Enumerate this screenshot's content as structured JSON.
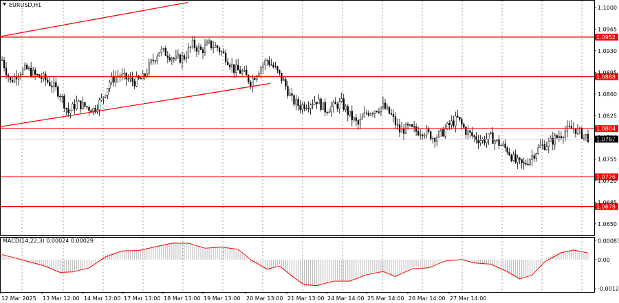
{
  "chart_data": [
    {
      "type": "candlestick",
      "title": "EURUSD,H1",
      "ylim": [
        1.0632,
        1.1012
      ],
      "price_ticks": [
        "1.1000",
        "1.0965",
        "1.0930",
        "1.0895",
        "1.0860",
        "1.0825",
        "1.0790",
        "1.0755",
        "1.0720",
        "1.0685",
        "1.0650"
      ],
      "x_labels": [
        "12 Mar 2025",
        "13 Mar 12:00",
        "14 Mar 12:00",
        "17 Mar 13:00",
        "18 Mar 13:00",
        "19 Mar 13:00",
        "20 Mar 13:00",
        "21 Mar 13:00",
        "24 Mar 14:00",
        "25 Mar 14:00",
        "26 Mar 14:00",
        "27 Mar 14:00"
      ],
      "current_price": {
        "value": "1.0787",
        "bg": "#000000",
        "fg": "#ffffff"
      },
      "horizontal_levels": [
        {
          "value": 1.0952,
          "label": "1.0952"
        },
        {
          "value": 1.0888,
          "label": "1.0888"
        },
        {
          "value": 1.0804,
          "label": "1.0804"
        },
        {
          "value": 1.0726,
          "label": "1.0726"
        },
        {
          "value": 1.0678,
          "label": "1.0678"
        }
      ],
      "trend_channel": {
        "upper": {
          "from": [
            "12 Mar 2025",
            1.0953
          ],
          "to": [
            "18 Mar 13:00",
            1.1008
          ]
        },
        "lower": {
          "from": [
            "12 Mar 2025",
            1.0807
          ],
          "to": [
            "20 Mar 13:00",
            1.0877
          ]
        }
      },
      "price_path": [
        [
          0,
          1.0915
        ],
        [
          4,
          1.088
        ],
        [
          8,
          1.0895
        ],
        [
          12,
          1.09
        ],
        [
          16,
          1.089
        ],
        [
          20,
          1.0885
        ],
        [
          24,
          1.0875
        ],
        [
          28,
          1.086
        ],
        [
          32,
          1.083
        ],
        [
          36,
          1.0845
        ],
        [
          40,
          1.084
        ],
        [
          44,
          1.0835
        ],
        [
          48,
          1.085
        ],
        [
          52,
          1.088
        ],
        [
          56,
          1.089
        ],
        [
          60,
          1.0885
        ],
        [
          64,
          1.088
        ],
        [
          68,
          1.0885
        ],
        [
          72,
          1.091
        ],
        [
          76,
          1.093
        ],
        [
          80,
          1.0925
        ],
        [
          84,
          1.0915
        ],
        [
          88,
          1.092
        ],
        [
          92,
          1.094
        ],
        [
          96,
          1.093
        ],
        [
          100,
          1.094
        ],
        [
          104,
          1.0935
        ],
        [
          108,
          1.092
        ],
        [
          112,
          1.09
        ],
        [
          116,
          1.0895
        ],
        [
          120,
          1.088
        ],
        [
          124,
          1.09
        ],
        [
          128,
          1.0915
        ],
        [
          132,
          1.09
        ],
        [
          136,
          1.088
        ],
        [
          140,
          1.085
        ],
        [
          144,
          1.084
        ],
        [
          148,
          1.0845
        ],
        [
          152,
          1.085
        ],
        [
          156,
          1.0835
        ],
        [
          160,
          1.084
        ],
        [
          164,
          1.0845
        ],
        [
          168,
          1.0825
        ],
        [
          172,
          1.081
        ],
        [
          176,
          1.083
        ],
        [
          180,
          1.0835
        ],
        [
          184,
          1.084
        ],
        [
          188,
          1.0825
        ],
        [
          192,
          1.08
        ],
        [
          196,
          1.0805
        ],
        [
          200,
          1.08
        ],
        [
          204,
          1.08
        ],
        [
          208,
          1.079
        ],
        [
          212,
          1.0795
        ],
        [
          216,
          1.081
        ],
        [
          220,
          1.082
        ],
        [
          224,
          1.08
        ],
        [
          228,
          1.079
        ],
        [
          232,
          1.0785
        ],
        [
          236,
          1.079
        ],
        [
          240,
          1.078
        ],
        [
          244,
          1.077
        ],
        [
          248,
          1.075
        ],
        [
          252,
          1.0745
        ],
        [
          256,
          1.076
        ],
        [
          260,
          1.0775
        ],
        [
          264,
          1.078
        ],
        [
          268,
          1.079
        ],
        [
          272,
          1.08
        ],
        [
          276,
          1.0805
        ],
        [
          280,
          1.0795
        ],
        [
          283,
          1.079
        ]
      ]
    },
    {
      "type": "histogram",
      "title": "MACD(14,22,3) 0.00024 0.00029",
      "ylim": [
        -0.00142,
        0.00099
      ],
      "y_ticks": [
        "0.00083",
        "0.00",
        "-0.00127"
      ],
      "signal_color": "#ff0000",
      "bar_color": "#b8b8b8",
      "macd_path": [
        [
          0,
          0.00018
        ],
        [
          10,
          -8e-05
        ],
        [
          20,
          -0.00032
        ],
        [
          28,
          -0.0006
        ],
        [
          34,
          -0.00052
        ],
        [
          42,
          -0.0003
        ],
        [
          50,
          0.0002
        ],
        [
          58,
          0.00042
        ],
        [
          66,
          0.0004
        ],
        [
          74,
          0.0006
        ],
        [
          82,
          0.00075
        ],
        [
          90,
          0.0007
        ],
        [
          98,
          0.00045
        ],
        [
          106,
          0.00058
        ],
        [
          114,
          0.0004
        ],
        [
          120,
          -0.0001
        ],
        [
          128,
          -0.0005
        ],
        [
          134,
          -0.0002
        ],
        [
          140,
          -0.0008
        ],
        [
          146,
          -0.00118
        ],
        [
          152,
          -0.00112
        ],
        [
          160,
          -0.0009
        ],
        [
          168,
          -0.00095
        ],
        [
          176,
          -0.0006
        ],
        [
          184,
          -0.0005
        ],
        [
          190,
          -0.0008
        ],
        [
          198,
          -0.0003
        ],
        [
          206,
          -0.00036
        ],
        [
          214,
          2e-05
        ],
        [
          222,
          2e-05
        ],
        [
          228,
          -0.0002
        ],
        [
          236,
          -0.00022
        ],
        [
          244,
          -0.0006
        ],
        [
          250,
          -0.0009
        ],
        [
          256,
          -0.0006
        ],
        [
          262,
          2e-05
        ],
        [
          270,
          0.00036
        ],
        [
          276,
          0.00045
        ],
        [
          283,
          0.00024
        ]
      ],
      "signal_path": [
        [
          0,
          0.00022
        ],
        [
          10,
          -2e-05
        ],
        [
          20,
          -0.00026
        ],
        [
          28,
          -0.00056
        ],
        [
          34,
          -0.00054
        ],
        [
          42,
          -0.00036
        ],
        [
          50,
          0.00012
        ],
        [
          58,
          0.00038
        ],
        [
          66,
          0.0004
        ],
        [
          74,
          0.00056
        ],
        [
          82,
          0.00072
        ],
        [
          90,
          0.00072
        ],
        [
          98,
          0.0005
        ],
        [
          106,
          0.00055
        ],
        [
          114,
          0.00045
        ],
        [
          120,
          0.0
        ],
        [
          128,
          -0.00042
        ],
        [
          134,
          -0.00028
        ],
        [
          140,
          -0.00072
        ],
        [
          146,
          -0.0011
        ],
        [
          152,
          -0.00114
        ],
        [
          160,
          -0.00094
        ],
        [
          168,
          -0.00094
        ],
        [
          176,
          -0.00066
        ],
        [
          184,
          -0.00052
        ],
        [
          190,
          -0.00074
        ],
        [
          198,
          -0.0004
        ],
        [
          206,
          -0.00036
        ],
        [
          214,
          -6e-05
        ],
        [
          222,
          0.0
        ],
        [
          228,
          -0.00014
        ],
        [
          236,
          -0.0002
        ],
        [
          244,
          -0.00052
        ],
        [
          250,
          -0.00084
        ],
        [
          256,
          -0.00068
        ],
        [
          262,
          -0.0001
        ],
        [
          270,
          0.0003
        ],
        [
          276,
          0.00042
        ],
        [
          283,
          0.00029
        ]
      ]
    }
  ]
}
